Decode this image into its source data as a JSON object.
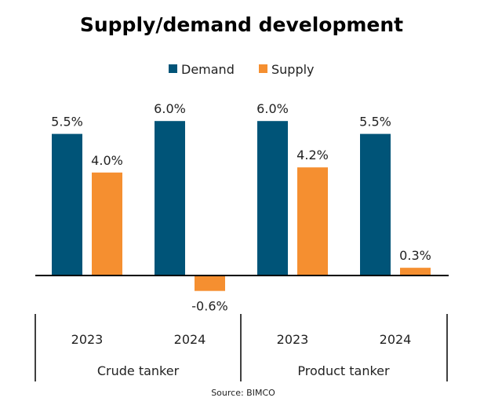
{
  "chart_data": {
    "type": "bar",
    "title": "Supply/demand development",
    "source": "Source: BIMCO",
    "groups": [
      "Crude tanker",
      "Product tanker"
    ],
    "categories": [
      "2023",
      "2024",
      "2023",
      "2024"
    ],
    "series": [
      {
        "name": "Demand",
        "color": "#005478",
        "values": [
          5.5,
          6.0,
          6.0,
          5.5
        ],
        "labels": [
          "5.5%",
          "6.0%",
          "6.0%",
          "5.5%"
        ]
      },
      {
        "name": "Supply",
        "color": "#F58F30",
        "values": [
          4.0,
          -0.6,
          4.2,
          0.3
        ],
        "labels": [
          "4.0%",
          "-0.6%",
          "4.2%",
          "0.3%"
        ]
      }
    ],
    "unit": "%",
    "legend": "top-center",
    "grid": false
  }
}
